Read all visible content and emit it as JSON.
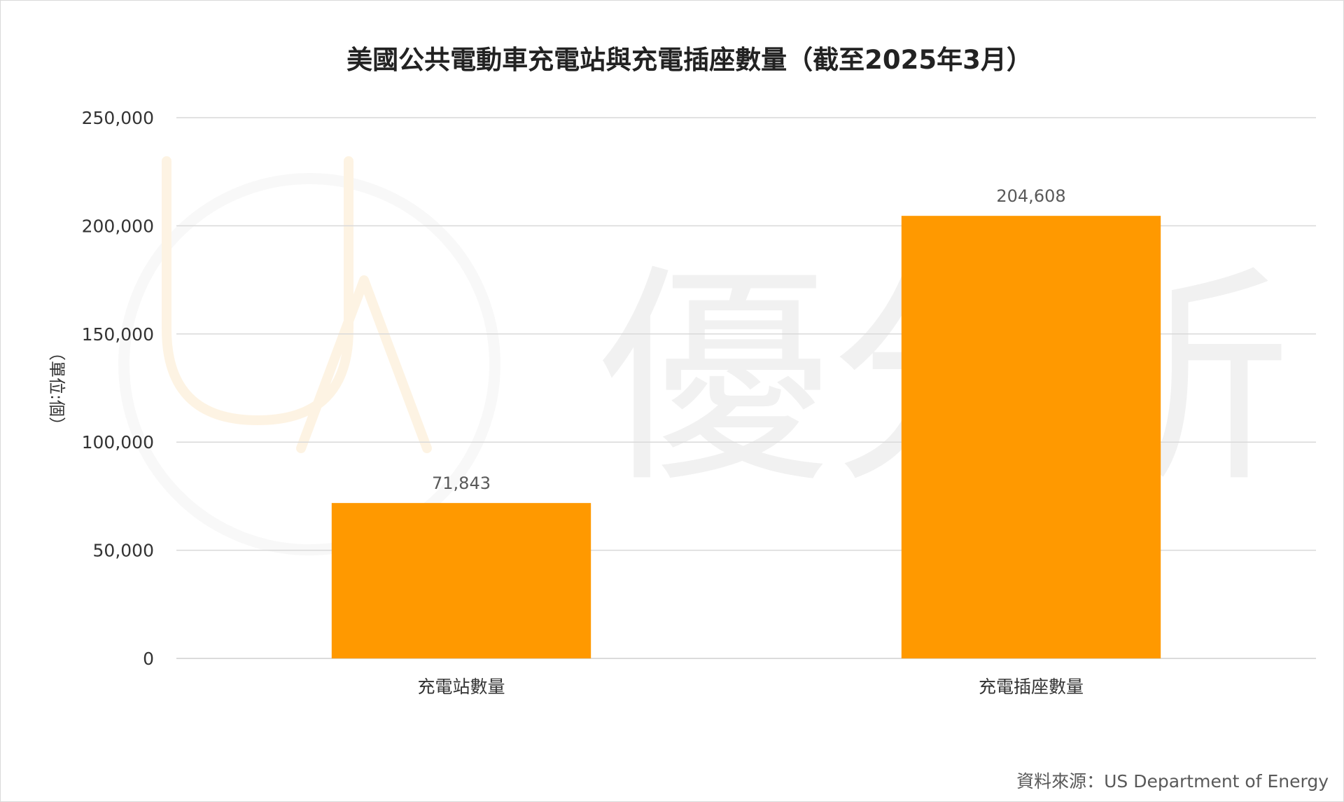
{
  "chart_data": {
    "type": "bar",
    "title": "美國公共電動車充電站與充電插座數量（截至2025年3月）",
    "ylabel": "（單位:個）",
    "xlabel": "",
    "categories": [
      "充電站數量",
      "充電插座數量"
    ],
    "values": [
      71843,
      204608
    ],
    "data_labels": [
      "71,843",
      "204,608"
    ],
    "ylim": [
      0,
      250000
    ],
    "y_ticks": [
      0,
      50000,
      100000,
      150000,
      200000,
      250000
    ],
    "y_tick_labels": [
      "0",
      "50,000",
      "100,000",
      "150,000",
      "200,000",
      "250,000"
    ],
    "grid": true,
    "legend": "none",
    "bar_color": "#FF9900"
  },
  "watermark": {
    "logo_text": "UA",
    "text": "優分析"
  },
  "source": "資料來源：US Department of Energy"
}
